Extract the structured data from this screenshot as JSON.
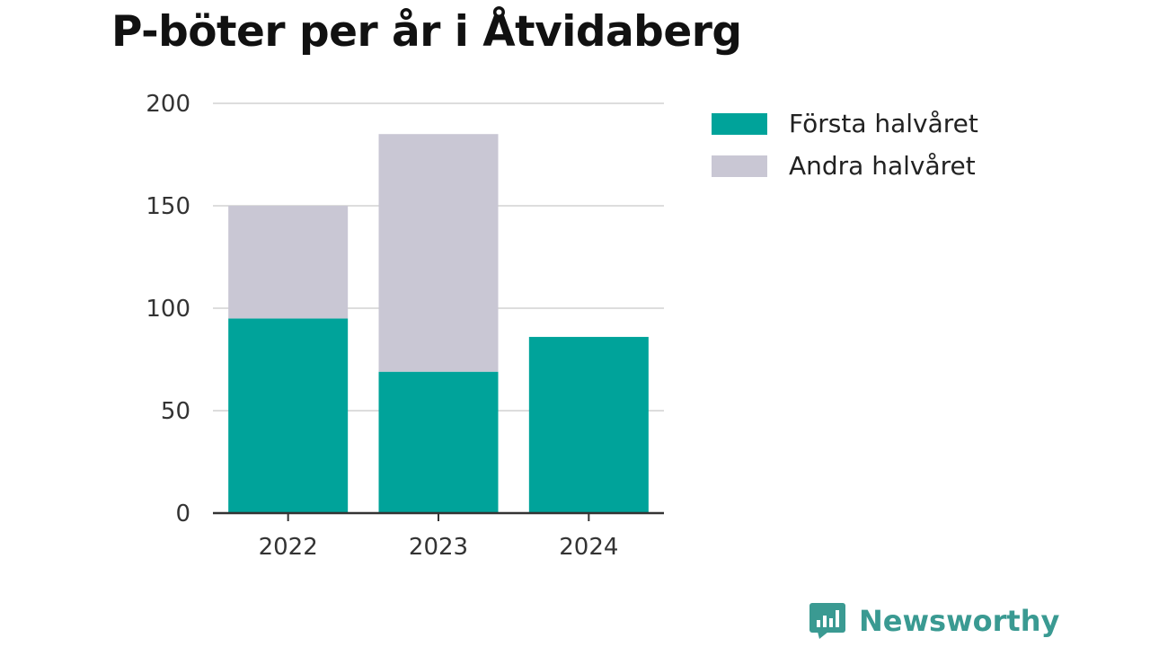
{
  "colors": {
    "first_half": "#00a39a",
    "second_half": "#c9c7d4",
    "grid": "#dddddd",
    "axis": "#333333",
    "brand": "#3a9a92"
  },
  "brand": {
    "name": "Newsworthy",
    "icon": "newsworthy-logo-icon"
  },
  "chart_data": {
    "type": "bar",
    "stacked": true,
    "title": "P-böter per år i Åtvidaberg",
    "categories": [
      "2022",
      "2023",
      "2024"
    ],
    "series": [
      {
        "name": "Första halvåret",
        "values": [
          95,
          69,
          86
        ],
        "color": "#00a39a"
      },
      {
        "name": "Andra halvåret",
        "values": [
          55,
          116,
          0
        ],
        "color": "#c9c7d4"
      }
    ],
    "ylim": [
      0,
      200
    ],
    "yticks": [
      "0",
      "50",
      "100",
      "150",
      "200"
    ],
    "xlabel": "",
    "ylabel": "",
    "grid": true,
    "legend_position": "right"
  }
}
